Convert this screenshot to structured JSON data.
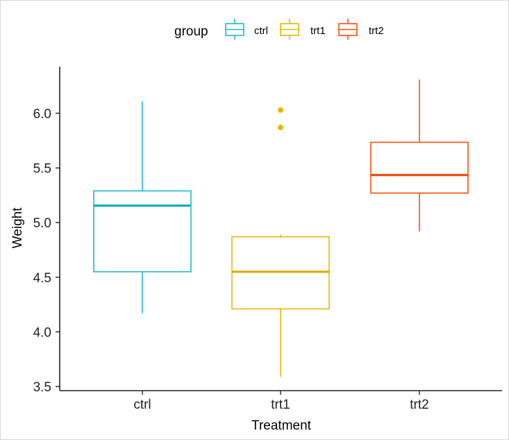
{
  "chart_data": {
    "type": "box",
    "title": "",
    "xlabel": "Treatment",
    "ylabel": "Weight",
    "ylim": [
      3.46,
      6.42
    ],
    "y_ticks": [
      3.5,
      4.0,
      4.5,
      5.0,
      5.5,
      6.0
    ],
    "y_tick_labels": [
      "3.5",
      "4.0",
      "4.5",
      "5.0",
      "5.5",
      "6.0"
    ],
    "categories": [
      "ctrl",
      "trt1",
      "trt2"
    ],
    "legend": {
      "title": "group",
      "position": "top",
      "entries": [
        "ctrl",
        "trt1",
        "trt2"
      ]
    },
    "series": [
      {
        "name": "ctrl",
        "color": "#1fb8cc",
        "median_color": "#00a9c2",
        "whisker_low": 4.17,
        "q1": 4.55,
        "median": 5.155,
        "q3": 5.29,
        "whisker_high": 6.11,
        "outliers": []
      },
      {
        "name": "trt1",
        "color": "#e7b800",
        "median_color": "#d9aa00",
        "whisker_low": 3.59,
        "q1": 4.21,
        "median": 4.55,
        "q3": 4.87,
        "whisker_high": 4.89,
        "outliers": [
          5.87,
          6.03
        ]
      },
      {
        "name": "trt2",
        "color": "#fc4e07",
        "median_color": "#e84607",
        "whisker_low": 4.92,
        "q1": 5.27,
        "median": 5.435,
        "q3": 5.735,
        "whisker_high": 6.31,
        "outliers": []
      }
    ],
    "grid": false
  }
}
